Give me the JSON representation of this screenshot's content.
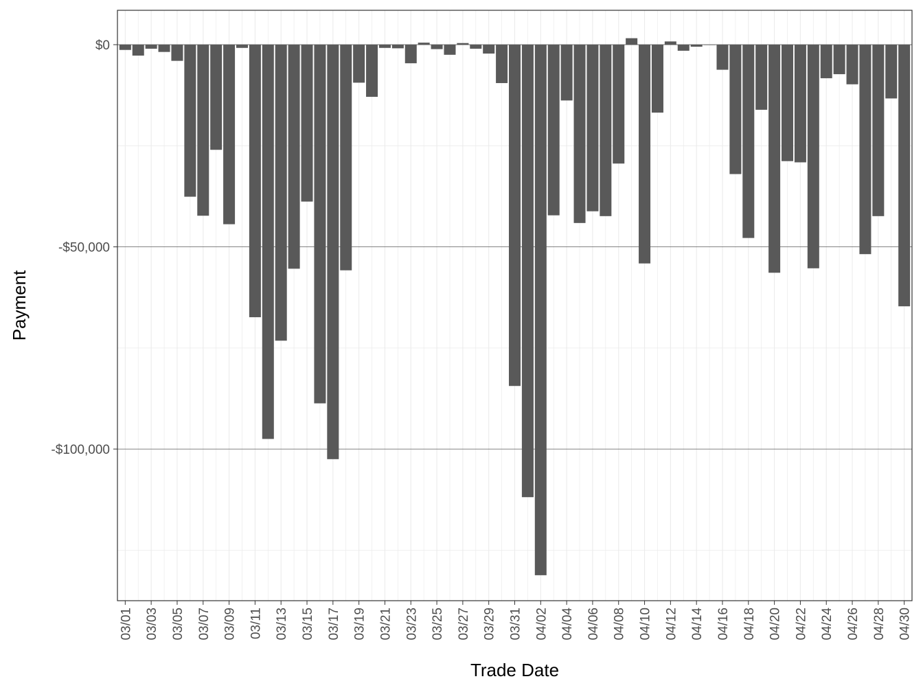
{
  "chart_data": {
    "type": "bar",
    "title": "",
    "xlabel": "Trade Date",
    "ylabel": "Payment",
    "ylim": [
      -137500,
      8500
    ],
    "y_ticks": [
      0,
      -50000,
      -100000
    ],
    "y_tick_labels": [
      "$0",
      "-$50,000",
      "-$100,000"
    ],
    "grid": true,
    "legend": "none",
    "bar_color": "#595959",
    "categories": [
      "03/01",
      "03/02",
      "03/03",
      "03/04",
      "03/05",
      "03/06",
      "03/07",
      "03/08",
      "03/09",
      "03/10",
      "03/11",
      "03/12",
      "03/13",
      "03/14",
      "03/15",
      "03/16",
      "03/17",
      "03/18",
      "03/19",
      "03/20",
      "03/21",
      "03/22",
      "03/23",
      "03/24",
      "03/25",
      "03/26",
      "03/27",
      "03/28",
      "03/29",
      "03/30",
      "03/31",
      "04/01",
      "04/02",
      "04/03",
      "04/04",
      "04/05",
      "04/06",
      "04/07",
      "04/08",
      "04/09",
      "04/10",
      "04/11",
      "04/12",
      "04/13",
      "04/14",
      "04/15",
      "04/16",
      "04/17",
      "04/18",
      "04/19",
      "04/20",
      "04/21",
      "04/22",
      "04/23",
      "04/24",
      "04/25",
      "04/26",
      "04/27",
      "04/28",
      "04/29",
      "04/30"
    ],
    "tick_labels": [
      "03/01",
      "03/03",
      "03/05",
      "03/07",
      "03/09",
      "03/11",
      "03/13",
      "03/15",
      "03/17",
      "03/19",
      "03/21",
      "03/23",
      "03/25",
      "03/27",
      "03/29",
      "03/31",
      "04/02",
      "04/04",
      "04/06",
      "04/08",
      "04/10",
      "04/12",
      "04/14",
      "04/16",
      "04/18",
      "04/20",
      "04/22",
      "04/24",
      "04/26",
      "04/28",
      "04/30"
    ],
    "values": [
      -1300,
      -2700,
      -1000,
      -1800,
      -4000,
      -37600,
      -42300,
      -26000,
      -44400,
      -800,
      -67400,
      -97500,
      -73200,
      -55400,
      -38800,
      -88700,
      -102500,
      -55800,
      -9400,
      -12900,
      -800,
      -900,
      -4600,
      500,
      -1100,
      -2500,
      400,
      -1000,
      -2200,
      -9500,
      -84400,
      -111900,
      -131200,
      -42200,
      -13800,
      -44100,
      -41200,
      -42400,
      -29400,
      1600,
      -54100,
      -16800,
      800,
      -1500,
      -500,
      -100,
      -6200,
      -32000,
      -47800,
      -16100,
      -56400,
      -28800,
      -29100,
      -55300,
      -8300,
      -7300,
      -9800,
      -51800,
      -42400,
      -13300,
      -64700
    ]
  }
}
